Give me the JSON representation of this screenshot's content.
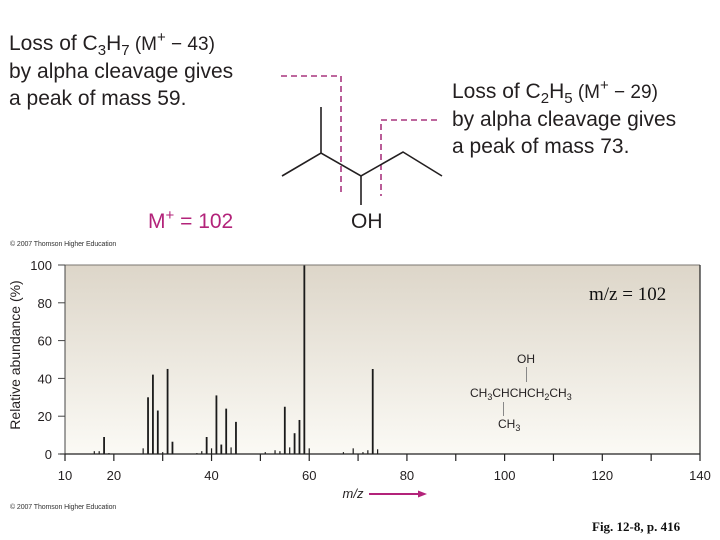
{
  "annotations": {
    "left": {
      "line1_prefix": "Loss of C",
      "line1_sub1": "3",
      "line1_mid": "H",
      "line1_sub2": "7",
      "line1_paren_open": " (M",
      "line1_sup": "+",
      "line1_suffix": " − 43)",
      "line2": "by alpha cleavage gives",
      "line3": "a peak of mass 59."
    },
    "right": {
      "line1_prefix": "Loss of C",
      "line1_sub1": "2",
      "line1_mid": "H",
      "line1_sub2": "5",
      "line1_paren_open": " (M",
      "line1_sup": "+",
      "line1_suffix": " − 29)",
      "line2": "by alpha cleavage gives",
      "line3": "a peak of mass 73."
    },
    "molecular_ion": {
      "base": "M",
      "sup": "+",
      "rest": " = 102"
    },
    "oh_label": "OH",
    "copyright_top": "© 2007 Thomson Higher Education",
    "copyright_bottom": "© 2007 Thomson Higher Education",
    "figure_caption": "Fig. 12-8, p. 416"
  },
  "colors": {
    "accent_magenta": "#b3237a",
    "dashed_magenta": "#a8357e",
    "plot_bg_top": "#ddd6c9",
    "plot_bg_bottom": "#fbfaf5",
    "peak_color": "#1a1a1a"
  },
  "structure_inset": {
    "oh": "OH",
    "main_chain": [
      "CH",
      "3",
      "CHCHCH",
      "2",
      "CH",
      "3"
    ],
    "branch": [
      "CH",
      "3"
    ]
  },
  "chart_data": {
    "type": "bar",
    "title": "m/z = 102",
    "xlabel": "m/z",
    "ylabel": "Relative abundance (%)",
    "xlim": [
      10,
      140
    ],
    "ylim": [
      0,
      100
    ],
    "x_ticks_major": [
      10,
      20,
      40,
      60,
      80,
      100,
      120,
      140
    ],
    "x_ticks_minor": [
      30,
      50,
      70,
      90,
      110,
      130
    ],
    "y_ticks": [
      0,
      20,
      40,
      60,
      80,
      100
    ],
    "grid": false,
    "x": [
      16,
      17,
      18,
      19,
      26,
      27,
      28,
      29,
      30,
      31,
      32,
      37,
      38,
      39,
      40,
      41,
      42,
      43,
      44,
      45,
      51,
      53,
      54,
      55,
      56,
      57,
      58,
      59,
      60,
      67,
      69,
      71,
      72,
      73,
      74
    ],
    "values": [
      1.5,
      1.5,
      9,
      0.5,
      3,
      30,
      42,
      23,
      1,
      45,
      6.5,
      0.5,
      1.5,
      9,
      3,
      31,
      5,
      24,
      3.5,
      17,
      1,
      2,
      1.5,
      25,
      3.5,
      11,
      18,
      100,
      3,
      1,
      3,
      1,
      2,
      45,
      2.5
    ],
    "annotations": [
      "m/z = 102"
    ]
  }
}
